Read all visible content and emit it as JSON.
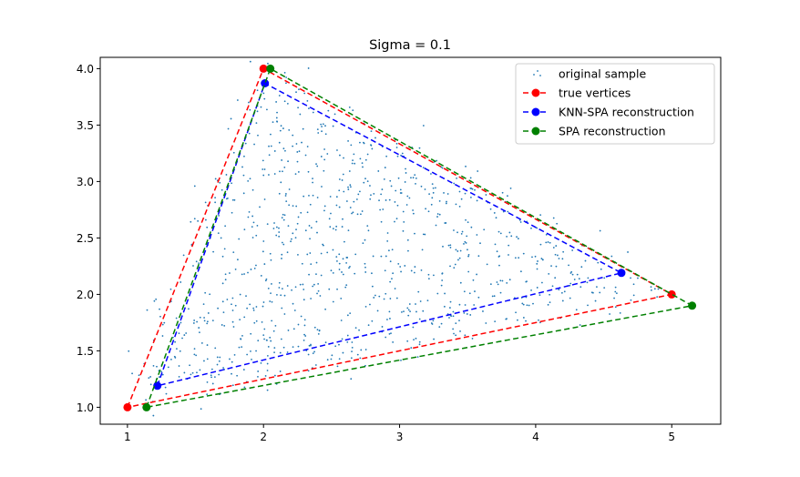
{
  "chart_data": {
    "type": "scatter",
    "title": "Sigma = 0.1",
    "xlabel": "",
    "ylabel": "",
    "xlim": [
      0.8,
      5.36
    ],
    "ylim": [
      0.85,
      4.1
    ],
    "xticks": [
      1,
      2,
      3,
      4,
      5
    ],
    "xtick_labels": [
      "1",
      "2",
      "3",
      "4",
      "5"
    ],
    "yticks": [
      1.0,
      1.5,
      2.0,
      2.5,
      3.0,
      3.5,
      4.0
    ],
    "ytick_labels": [
      "1.0",
      "1.5",
      "2.0",
      "2.5",
      "3.0",
      "3.5",
      "4.0"
    ],
    "grid": false,
    "legend_position": "top-right",
    "series": [
      {
        "name": "original sample",
        "kind": "scatter",
        "color": "#1f77b4",
        "n_points": 1000,
        "sigma": 0.1
      },
      {
        "name": "true vertices",
        "kind": "dashed-polygon",
        "color": "#ff0000",
        "x": [
          1.0,
          2.0,
          5.0
        ],
        "y": [
          1.0,
          4.0,
          2.0
        ]
      },
      {
        "name": "KNN-SPA reconstruction",
        "kind": "dashed-polygon",
        "color": "#0000ff",
        "x": [
          1.22,
          2.01,
          4.63
        ],
        "y": [
          1.19,
          3.87,
          2.19
        ]
      },
      {
        "name": "SPA reconstruction",
        "kind": "dashed-polygon",
        "color": "#008000",
        "x": [
          1.14,
          2.05,
          5.15
        ],
        "y": [
          1.0,
          4.0,
          1.9
        ]
      }
    ]
  }
}
